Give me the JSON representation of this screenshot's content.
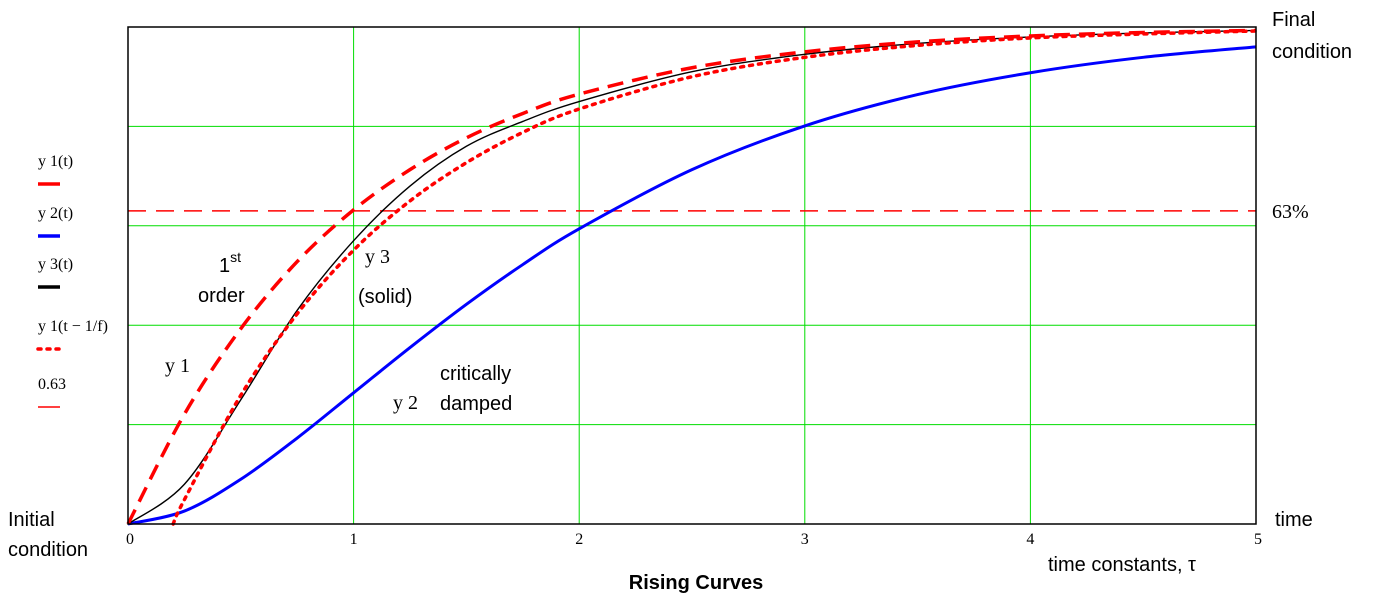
{
  "chart_data": {
    "type": "line",
    "title": "Rising Curves",
    "xlabel": "time constants, τ",
    "xlim": [
      0,
      5
    ],
    "ylim": [
      0,
      1
    ],
    "x_ticks": [
      "0",
      "1",
      "2",
      "3",
      "4",
      "5"
    ],
    "grid": true,
    "grid_color": "#00dd00",
    "left_labels": {
      "bottom_line1": "Initial",
      "bottom_line2": "condition"
    },
    "right_labels": {
      "top_line1": "Final",
      "top_line2": "condition",
      "reference": "63%",
      "bottom": "time"
    },
    "legend": [
      {
        "text": "y 1(t)",
        "color": "#ff0000",
        "style": "dashed"
      },
      {
        "text": "y 2(t)",
        "color": "#0000ff",
        "style": "solid"
      },
      {
        "text": "y 3(t)",
        "color": "#000000",
        "style": "solid"
      },
      {
        "text": "y 1(t − 1/f)",
        "color": "#ff0000",
        "style": "dotted"
      },
      {
        "text": "0.63",
        "color": "#ff0000",
        "style": "dashed-thin"
      }
    ],
    "annotations": {
      "first_order": "1",
      "first_order_sup": "st",
      "first_order_word": "order",
      "y1": "y 1",
      "y3": "y 3",
      "y3_note": "(solid)",
      "y2": "y 2",
      "y2_note_1": "critically",
      "y2_note_2": "damped"
    },
    "series": [
      {
        "name": "y 1(t)",
        "color": "#ff0000",
        "style": "dashed",
        "x": [
          0,
          0.25,
          0.5,
          0.75,
          1,
          1.25,
          1.5,
          1.75,
          2,
          2.5,
          3,
          3.5,
          4,
          4.5,
          5
        ],
        "y": [
          0,
          0.221,
          0.393,
          0.528,
          0.632,
          0.713,
          0.777,
          0.826,
          0.865,
          0.918,
          0.95,
          0.97,
          0.982,
          0.989,
          0.993
        ]
      },
      {
        "name": "y 2(t)",
        "color": "#0000ff",
        "style": "solid",
        "x": [
          0,
          0.25,
          0.5,
          0.75,
          1,
          1.25,
          1.5,
          1.75,
          2,
          2.5,
          3,
          3.5,
          4,
          4.5,
          5
        ],
        "y": [
          0,
          0.026,
          0.09,
          0.173,
          0.264,
          0.355,
          0.442,
          0.522,
          0.594,
          0.713,
          0.801,
          0.864,
          0.908,
          0.939,
          0.96
        ]
      },
      {
        "name": "y 3(t)",
        "color": "#000000",
        "style": "solid",
        "x": [
          0,
          0.25,
          0.5,
          0.75,
          1,
          1.25,
          1.5,
          1.75,
          2,
          2.5,
          3,
          3.5,
          4,
          4.5,
          5
        ],
        "y": [
          0,
          0.08,
          0.25,
          0.43,
          0.57,
          0.68,
          0.76,
          0.81,
          0.85,
          0.91,
          0.945,
          0.967,
          0.98,
          0.988,
          0.993
        ]
      },
      {
        "name": "y 1(t − 1/f)",
        "color": "#ff0000",
        "style": "dotted",
        "x": [
          0.2,
          0.25,
          0.5,
          0.75,
          1,
          1.25,
          1.5,
          1.75,
          2,
          2.5,
          3,
          3.5,
          4,
          4.5,
          5
        ],
        "y": [
          0,
          0.049,
          0.259,
          0.423,
          0.551,
          0.65,
          0.727,
          0.788,
          0.835,
          0.9,
          0.939,
          0.963,
          0.978,
          0.986,
          0.992
        ]
      },
      {
        "name": "0.63",
        "color": "#ff0000",
        "style": "dashed-thin",
        "x": [
          0,
          5
        ],
        "y": [
          0.63,
          0.63
        ]
      }
    ]
  }
}
